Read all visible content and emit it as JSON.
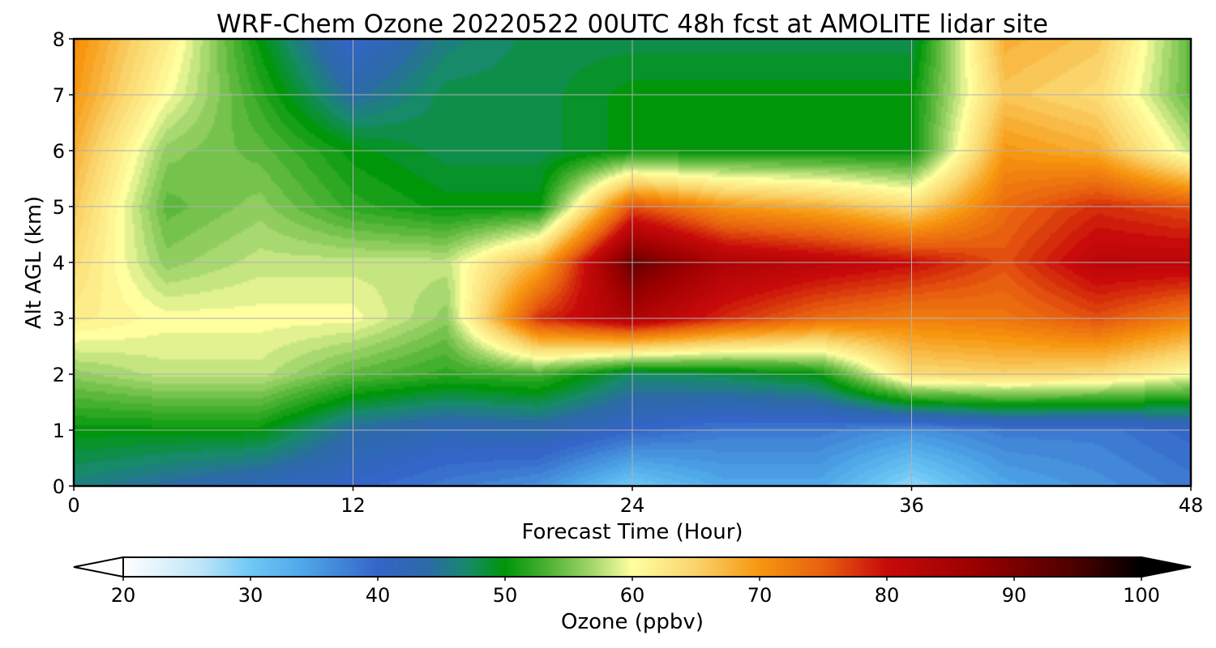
{
  "chart_data": {
    "type": "heatmap",
    "title": "WRF-Chem Ozone  20220522 00UTC 48h fcst at AMOLITE lidar site",
    "xlabel": "Forecast Time (Hour)",
    "ylabel": "Alt AGL (km)",
    "xlim": [
      0,
      48
    ],
    "ylim": [
      0,
      8
    ],
    "x_ticks": [
      0,
      12,
      24,
      36,
      48
    ],
    "y_ticks": [
      0,
      1,
      2,
      3,
      4,
      5,
      6,
      7,
      8
    ],
    "grid": true,
    "x": [
      0,
      4,
      8,
      12,
      16,
      20,
      24,
      28,
      32,
      36,
      40,
      44,
      48
    ],
    "y": [
      0,
      1,
      2,
      3,
      4,
      5,
      6,
      7,
      8
    ],
    "z_ppbv": [
      [
        46,
        44,
        42,
        40,
        38,
        36,
        30,
        34,
        34,
        28,
        34,
        36,
        38
      ],
      [
        50,
        50,
        50,
        44,
        42,
        43,
        40,
        38,
        38,
        36,
        38,
        38,
        40
      ],
      [
        56,
        58,
        58,
        54,
        52,
        53,
        47,
        48,
        50,
        64,
        65,
        64,
        60
      ],
      [
        62,
        60,
        60,
        60,
        56,
        78,
        84,
        78,
        74,
        72,
        73,
        76,
        72
      ],
      [
        64,
        56,
        58,
        58,
        58,
        68,
        92,
        84,
        82,
        80,
        76,
        82,
        82
      ],
      [
        66,
        54,
        56,
        52,
        50,
        50,
        76,
        70,
        68,
        64,
        74,
        78,
        76
      ],
      [
        68,
        56,
        54,
        50,
        48,
        48,
        50,
        50,
        50,
        50,
        70,
        68,
        58
      ],
      [
        70,
        60,
        52,
        44,
        48,
        48,
        50,
        50,
        50,
        50,
        66,
        64,
        54
      ],
      [
        71,
        62,
        50,
        40,
        46,
        48,
        48,
        48,
        48,
        48,
        68,
        66,
        54
      ]
    ],
    "colorbar": {
      "label": "Ozone  (ppbv)",
      "min": 20,
      "max": 100,
      "ticks": [
        20,
        30,
        40,
        50,
        60,
        70,
        80,
        90,
        100
      ],
      "extend": "both",
      "colormap_stops": [
        {
          "v": 20,
          "c": "#ffffff"
        },
        {
          "v": 26,
          "c": "#bfe6f8"
        },
        {
          "v": 30,
          "c": "#6fc8f5"
        },
        {
          "v": 34,
          "c": "#4fa8e8"
        },
        {
          "v": 40,
          "c": "#3465c8"
        },
        {
          "v": 44,
          "c": "#2c6aa8"
        },
        {
          "v": 47,
          "c": "#178a6a"
        },
        {
          "v": 50,
          "c": "#00960a"
        },
        {
          "v": 54,
          "c": "#5cb83c"
        },
        {
          "v": 57,
          "c": "#a8d870"
        },
        {
          "v": 60,
          "c": "#ffffa0"
        },
        {
          "v": 65,
          "c": "#fad36a"
        },
        {
          "v": 70,
          "c": "#f7960f"
        },
        {
          "v": 75,
          "c": "#e8600f"
        },
        {
          "v": 80,
          "c": "#c80a0a"
        },
        {
          "v": 87,
          "c": "#9a0000"
        },
        {
          "v": 95,
          "c": "#4a0000"
        },
        {
          "v": 100,
          "c": "#000000"
        }
      ]
    }
  }
}
